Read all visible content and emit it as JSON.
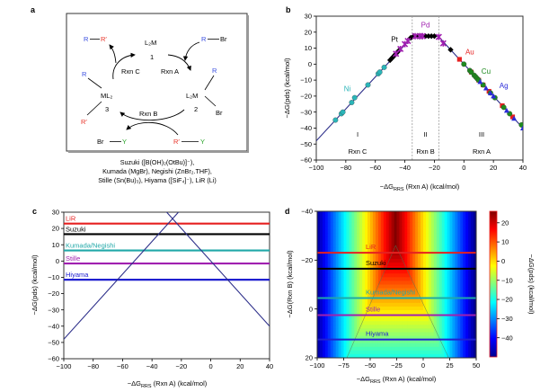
{
  "panels": {
    "a": {
      "label": "a",
      "scheme": {
        "species": {
          "L2M": "L₂M",
          "cat1_num": "1",
          "L2M_2": "L₂M",
          "cat2_num": "2",
          "ML2": "ML₂",
          "cat3_num": "3",
          "R": "R",
          "Rprime": "R′",
          "Br": "Br",
          "Y": "Y",
          "dash": "—"
        },
        "reactions": {
          "A": "Rxn A",
          "B": "Rxn B",
          "C": "Rxn C"
        },
        "colors": {
          "R": "#3a4fe0",
          "Rprime": "#e8342a",
          "Y": "#2aa52a",
          "text": "#000000"
        }
      },
      "caption": [
        "Suzuki ([B(OH)₂(OtBu)]⁻),",
        "Kumada (MgBr), Negishi (ZnBr₂.THF),",
        "Stille (Sn(Bu)₃), Hiyama ([SiF₄]⁻), LiR (Li)"
      ]
    },
    "b": {
      "label": "b"
    },
    "c": {
      "label": "c"
    },
    "d": {
      "label": "d"
    }
  },
  "chart_data": [
    {
      "panel": "b",
      "type": "scatter",
      "title": "",
      "xlabel": "−ΔG_RRS (Rxn A) (kcal/mol)",
      "xlabel_main": "−ΔG",
      "xlabel_sub": "RRS",
      "xlabel_rest": " (Rxn A) (kcal/mol)",
      "ylabel": "−ΔG(pds) (kcal/mol)",
      "xlim": [
        -100,
        40
      ],
      "ylim": [
        -60,
        30
      ],
      "xticks": [
        -100,
        -80,
        -60,
        -40,
        -20,
        0,
        20,
        40
      ],
      "yticks": [
        -60,
        -50,
        -40,
        -30,
        -20,
        -10,
        0,
        10,
        20,
        30
      ],
      "volcano_line": {
        "left": {
          "slope": 1,
          "intercept": 52
        },
        "plateau": 17.5,
        "right": {
          "slope": -1,
          "intercept": 0
        },
        "color": "#2d2f8a"
      },
      "dividers": [
        -35,
        -17
      ],
      "regions": [
        {
          "roman": "I",
          "rxn": "Rxn C",
          "x": -72
        },
        {
          "roman": "II",
          "rxn": "Rxn B",
          "x": -26
        },
        {
          "roman": "III",
          "rxn": "Rxn A",
          "x": 12
        }
      ],
      "series": [
        {
          "name": "Ni",
          "color": "#2bb5b8",
          "marker": "circle",
          "label_pos": [
            -79,
            -17
          ],
          "x": [
            -87,
            -83,
            -82,
            -76,
            -74,
            -65,
            -58,
            -57,
            -54
          ],
          "y": [
            -35,
            -31,
            -30,
            -24,
            -21,
            -13,
            -6,
            -5,
            -2
          ]
        },
        {
          "name": "Pt",
          "color": "#000000",
          "marker": "diamond",
          "label_pos": [
            -47,
            14
          ],
          "x": [
            -50,
            -49,
            -48,
            -47,
            -46,
            -45,
            -44,
            -36,
            -34,
            -31,
            -26,
            -24,
            -22,
            -20,
            -9
          ],
          "y": [
            2.5,
            3.5,
            4.5,
            5.5,
            6.5,
            7.5,
            8.5,
            16.5,
            17.5,
            17.5,
            17.5,
            17.5,
            17.5,
            17.5,
            9
          ]
        },
        {
          "name": "Pd",
          "color": "#a020b0",
          "marker": "star",
          "label_pos": [
            -26,
            23
          ],
          "x": [
            -46,
            -43,
            -40,
            -38,
            -33,
            -30,
            -28,
            -17,
            -14
          ],
          "y": [
            6.5,
            9.5,
            12.5,
            14.5,
            17.5,
            17.5,
            17.5,
            17,
            13
          ]
        },
        {
          "name": "Au",
          "color": "#e62020",
          "marker": "square",
          "label_pos": [
            4,
            6
          ],
          "x": [
            -3,
            5,
            10,
            13,
            17,
            26,
            33
          ],
          "y": [
            3,
            -5,
            -10,
            -13,
            -17,
            -26,
            -33
          ]
        },
        {
          "name": "Cu",
          "color": "#1e8a1e",
          "marker": "circle",
          "label_pos": [
            15,
            -6
          ],
          "x": [
            0,
            4,
            5,
            7,
            8,
            9,
            10,
            13,
            18,
            21,
            27,
            31,
            39
          ],
          "y": [
            0,
            -4,
            -5,
            -7,
            -8,
            -9,
            -10,
            -13,
            -18,
            -21,
            -27,
            -31,
            -38
          ]
        },
        {
          "name": "Ag",
          "color": "#2a2ad8",
          "marker": "triangle",
          "label_pos": [
            27,
            -15
          ],
          "x": [
            11,
            15,
            18,
            20,
            29,
            34,
            40
          ],
          "y": [
            -11,
            -15,
            -18,
            -20,
            -29,
            -34,
            -40
          ]
        }
      ]
    },
    {
      "panel": "c",
      "type": "line",
      "title": "",
      "xlabel": "−ΔG_RRS (Rxn A) (kcal/mol)",
      "xlabel_main": "−ΔG",
      "xlabel_sub": "RRS",
      "xlabel_rest": " (Rxn A) (kcal/mol)",
      "ylabel": "−ΔG(pds) (kcal/mol)",
      "xlim": [
        -100,
        40
      ],
      "ylim": [
        -60,
        30
      ],
      "xticks": [
        -100,
        -80,
        -60,
        -40,
        -20,
        0,
        20,
        40
      ],
      "yticks": [
        -60,
        -50,
        -40,
        -30,
        -20,
        -10,
        0,
        10,
        20,
        30
      ],
      "scaling_lines": [
        {
          "name": "Rxn C line",
          "slope": 1,
          "intercept": 52,
          "color": "#2d2f8a"
        },
        {
          "name": "Rxn A line",
          "slope": -1,
          "intercept": 0,
          "color": "#2d2f8a"
        }
      ],
      "series": [
        {
          "name": "LiR",
          "y": 23,
          "color": "#e62020"
        },
        {
          "name": "Suzuki",
          "y": 16.5,
          "color": "#000000"
        },
        {
          "name": "Kumada/Negishi",
          "y": 6.5,
          "color": "#20a8a8"
        },
        {
          "name": "Stille",
          "y": -1.5,
          "color": "#a020b0"
        },
        {
          "name": "Hiyama",
          "y": -11.5,
          "color": "#2020d0"
        }
      ]
    },
    {
      "panel": "d",
      "type": "heatmap",
      "title": "",
      "xlabel": "−ΔG_RRS (Rxn A) (kcal/mol)",
      "xlabel_main": "−ΔG",
      "xlabel_sub": "RRS",
      "xlabel_rest": " (Rxn A) (kcal/mol)",
      "ylabel": "−ΔG(Rxn B) (kcal/mol)",
      "colorbar_label": "−ΔG(pds) (kcal/mol)",
      "xlim": [
        -100,
        50
      ],
      "ylim": [
        -40,
        20
      ],
      "y_inverted": true,
      "xticks": [
        -100,
        -75,
        -50,
        -25,
        0,
        25,
        50
      ],
      "yticks": [
        -40,
        -20,
        0,
        20
      ],
      "colorbar_range": [
        -50,
        26
      ],
      "colorbar_ticks": [
        20,
        10,
        0,
        -10,
        -20,
        -30,
        -40
      ],
      "colormap": "jet",
      "model": "-dG(pds) = min(x + 52, -x, plateau) where plateau depends on Rxn B",
      "series": [
        {
          "name": "LiR",
          "y": -23,
          "color": "#e62020"
        },
        {
          "name": "Suzuki",
          "y": -16.5,
          "color": "#000000"
        },
        {
          "name": "Kumada/Negishi",
          "y": -4.5,
          "color": "#20a8a8"
        },
        {
          "name": "Stille",
          "y": 2.5,
          "color": "#a020b0"
        },
        {
          "name": "Hiyama",
          "y": 12.5,
          "color": "#2020d0"
        }
      ]
    }
  ]
}
